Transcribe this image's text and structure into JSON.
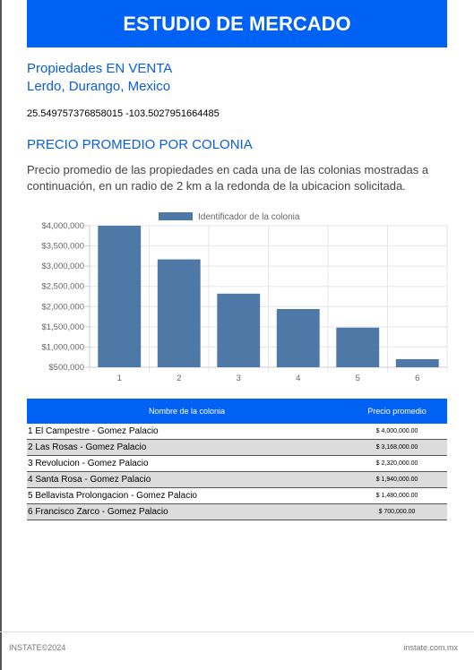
{
  "header": {
    "title": "ESTUDIO DE MERCADO"
  },
  "property": {
    "type_line": "Propiedades EN VENTA",
    "location": "Lerdo, Durango, Mexico",
    "coordinates": "25.549757376858015 -103.5027951664485"
  },
  "section": {
    "title": "PRECIO PROMEDIO POR COLONIA",
    "description": "Precio promedio de las propiedades en cada una de las colonias mostradas a continuación, en un radio de 2 km a la redonda de la ubicacion solicitada."
  },
  "chart_data": {
    "type": "bar",
    "categories": [
      "1",
      "2",
      "3",
      "4",
      "5",
      "6"
    ],
    "series": [
      {
        "name": "Identificador de la colonia",
        "values": [
          4000000,
          3168000,
          2320000,
          1940000,
          1480000,
          700000
        ]
      }
    ],
    "ylim": [
      500000,
      4000000
    ],
    "yticks": [
      "$500,000",
      "$1,000,000",
      "$1,500,000",
      "$2,000,000",
      "$2,500,000",
      "$3,000,000",
      "$3,500,000",
      "$4,000,000"
    ],
    "ytick_values": [
      500000,
      1000000,
      1500000,
      2000000,
      2500000,
      3000000,
      3500000,
      4000000
    ],
    "legend_position": "top",
    "grid": true,
    "bar_color": "#4e79a7"
  },
  "table": {
    "headers": {
      "name": "Nombre de la colonia",
      "price": "Precio promedio"
    },
    "rows": [
      {
        "name": "1 El Campestre - Gomez Palacio",
        "price": "$ 4,000,000.00"
      },
      {
        "name": "2 Las Rosas - Gomez Palacio",
        "price": "$ 3,168,000.00"
      },
      {
        "name": "3 Revolucion - Gomez Palacio",
        "price": "$ 2,320,000.00"
      },
      {
        "name": "4 Santa Rosa - Gomez Palacio",
        "price": "$ 1,940,000.00"
      },
      {
        "name": "5 Bellavista Prolongacion - Gomez Palacio",
        "price": "$ 1,480,000.00"
      },
      {
        "name": "6 Francisco Zarco - Gomez Palacio",
        "price": "$ 700,000.00"
      }
    ]
  },
  "footer": {
    "left": "INSTATE©2024",
    "right": "instate.com.mx"
  },
  "colors": {
    "accent": "#0062f5",
    "link": "#0b5ed7"
  }
}
